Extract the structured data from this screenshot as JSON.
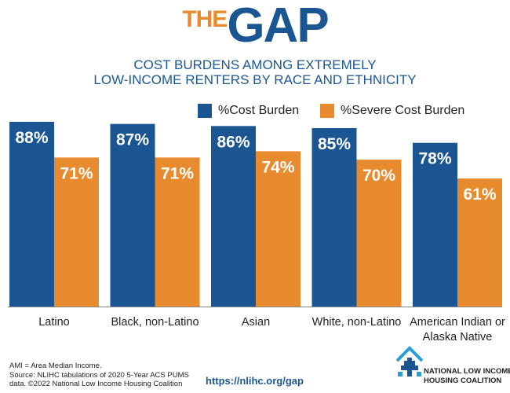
{
  "logo": {
    "the": "THE",
    "gap": "GAP"
  },
  "subtitle_line1": "COST BURDENS AMONG EXTREMELY",
  "subtitle_line2": "LOW-INCOME RENTERS BY RACE AND ETHNICITY",
  "colors": {
    "cost_burden": "#1b5693",
    "severe_cost_burden": "#e88a2e"
  },
  "chart_data": {
    "type": "bar",
    "categories": [
      "Latino",
      "Black, non-Latino",
      "Asian",
      "White, non-Latino",
      "American Indian or Alaska Native"
    ],
    "series": [
      {
        "name": "%Cost Burden",
        "values": [
          88,
          87,
          86,
          85,
          78
        ]
      },
      {
        "name": "%Severe Cost Burden",
        "values": [
          71,
          71,
          74,
          70,
          61
        ]
      }
    ],
    "value_suffix": "%",
    "ylim": [
      0,
      100
    ],
    "legend": "top-right",
    "grid": false
  },
  "footnote_lines": [
    "AMI = Area Median Income.",
    "Source: NLIHC tabulations of 2020 5-Year ACS PUMS",
    "data. ©2022 National Low Income Housing Coalition"
  ],
  "url": "https://nlihc.org/gap",
  "org_name_line1": "NATIONAL LOW INCOME",
  "org_name_line2": "HOUSING COALITION",
  "org_logo_icon": "house-cross-icon"
}
